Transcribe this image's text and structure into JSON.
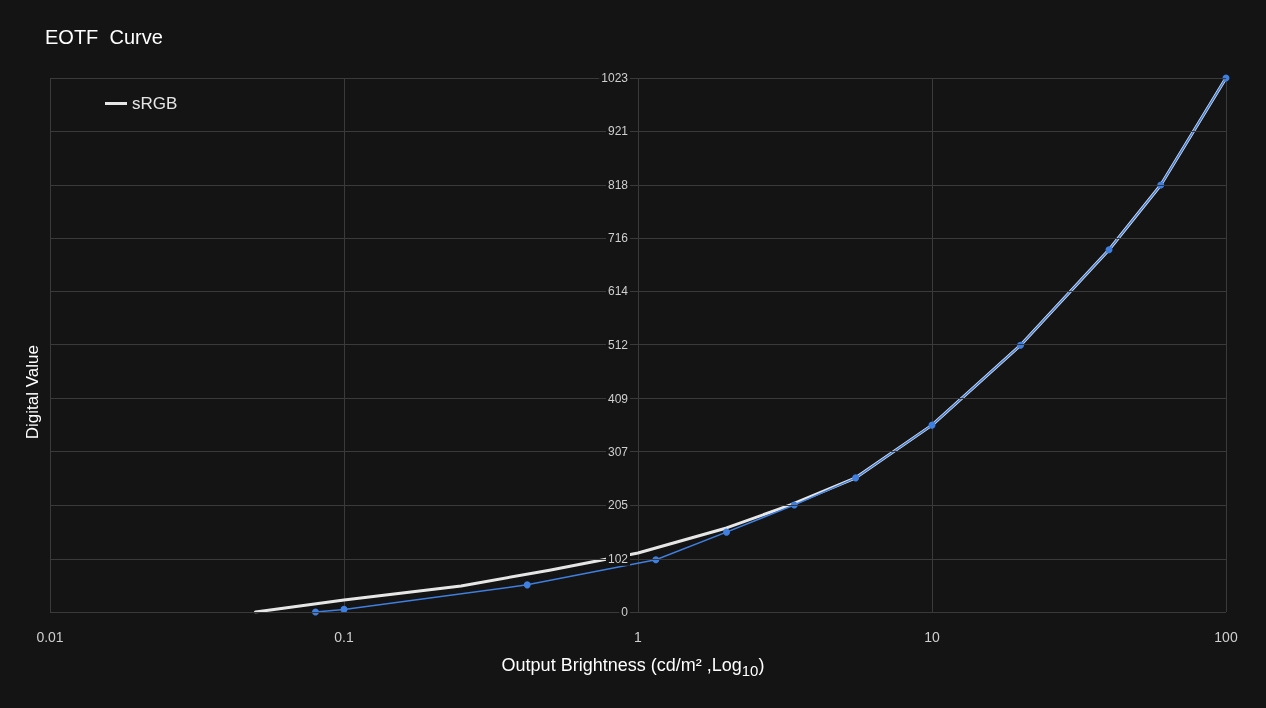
{
  "chart_data": {
    "type": "line",
    "title": "EOTF  Curve",
    "xlabel": "Output Brightness (cd/m² ,Log$_{10}$)",
    "ylabel": "Digital Value",
    "log": "x",
    "xlim": [
      0.01,
      100
    ],
    "xticks": [
      0.01,
      0.1,
      1,
      10,
      100
    ],
    "ylim": [
      0,
      1023
    ],
    "yticks": [
      0,
      102,
      205,
      307,
      409,
      512,
      614,
      716,
      818,
      921,
      1023
    ],
    "grid": true,
    "legend": "top left",
    "line_style": "solid",
    "series": [
      {
        "name": "sRGB",
        "color": "#e6e6e6",
        "marker": "none",
        "x": [
          0.05,
          0.1,
          0.25,
          0.5,
          1,
          2,
          3.3,
          5.5,
          10,
          20,
          40,
          60,
          100
        ],
        "values": [
          0,
          23,
          50,
          80,
          113,
          161,
          205,
          257,
          358,
          511,
          694,
          818,
          1023
        ]
      },
      {
        "color": "#3f7fe0",
        "marker": "circle",
        "x": [
          0.08,
          0.1,
          0.42,
          1.15,
          2,
          3.4,
          5.5,
          10,
          20,
          40,
          60,
          100
        ],
        "values": [
          0,
          5,
          52,
          100,
          153,
          205,
          257,
          358,
          511,
          694,
          818,
          1023
        ]
      }
    ]
  }
}
